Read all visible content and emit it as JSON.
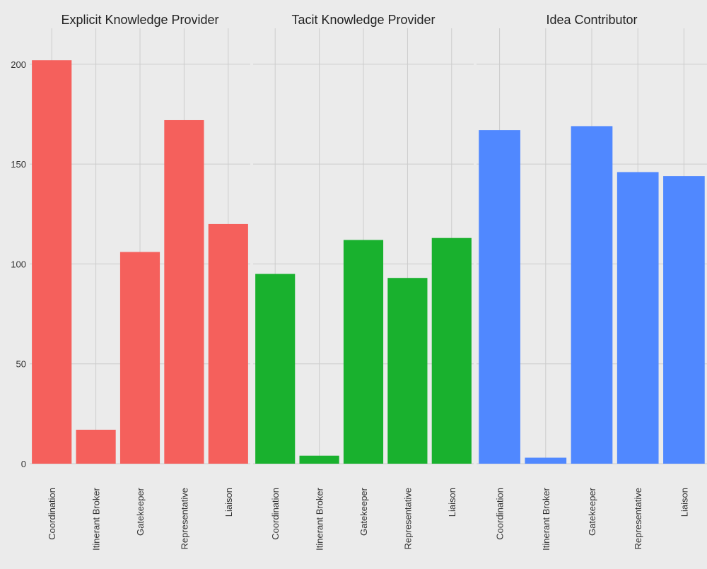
{
  "chart_data": {
    "type": "bar",
    "categories": [
      "Coordination",
      "Itinerant Broker",
      "Gatekeeper",
      "Representative",
      "Liaison"
    ],
    "y_ticks": [
      "0",
      "50",
      "100",
      "150",
      "200"
    ],
    "ylim": [
      0,
      218
    ],
    "grid": true,
    "panels": [
      {
        "title": "Explicit Knowledge Provider",
        "color": "#f5605c",
        "values": [
          202,
          17,
          106,
          172,
          120
        ]
      },
      {
        "title": "Tacit Knowledge Provider",
        "color": "#19b12e",
        "values": [
          95,
          4,
          112,
          93,
          113
        ]
      },
      {
        "title": "Idea Contributor",
        "color": "#5088ff",
        "values": [
          167,
          3,
          169,
          146,
          144
        ]
      }
    ]
  }
}
